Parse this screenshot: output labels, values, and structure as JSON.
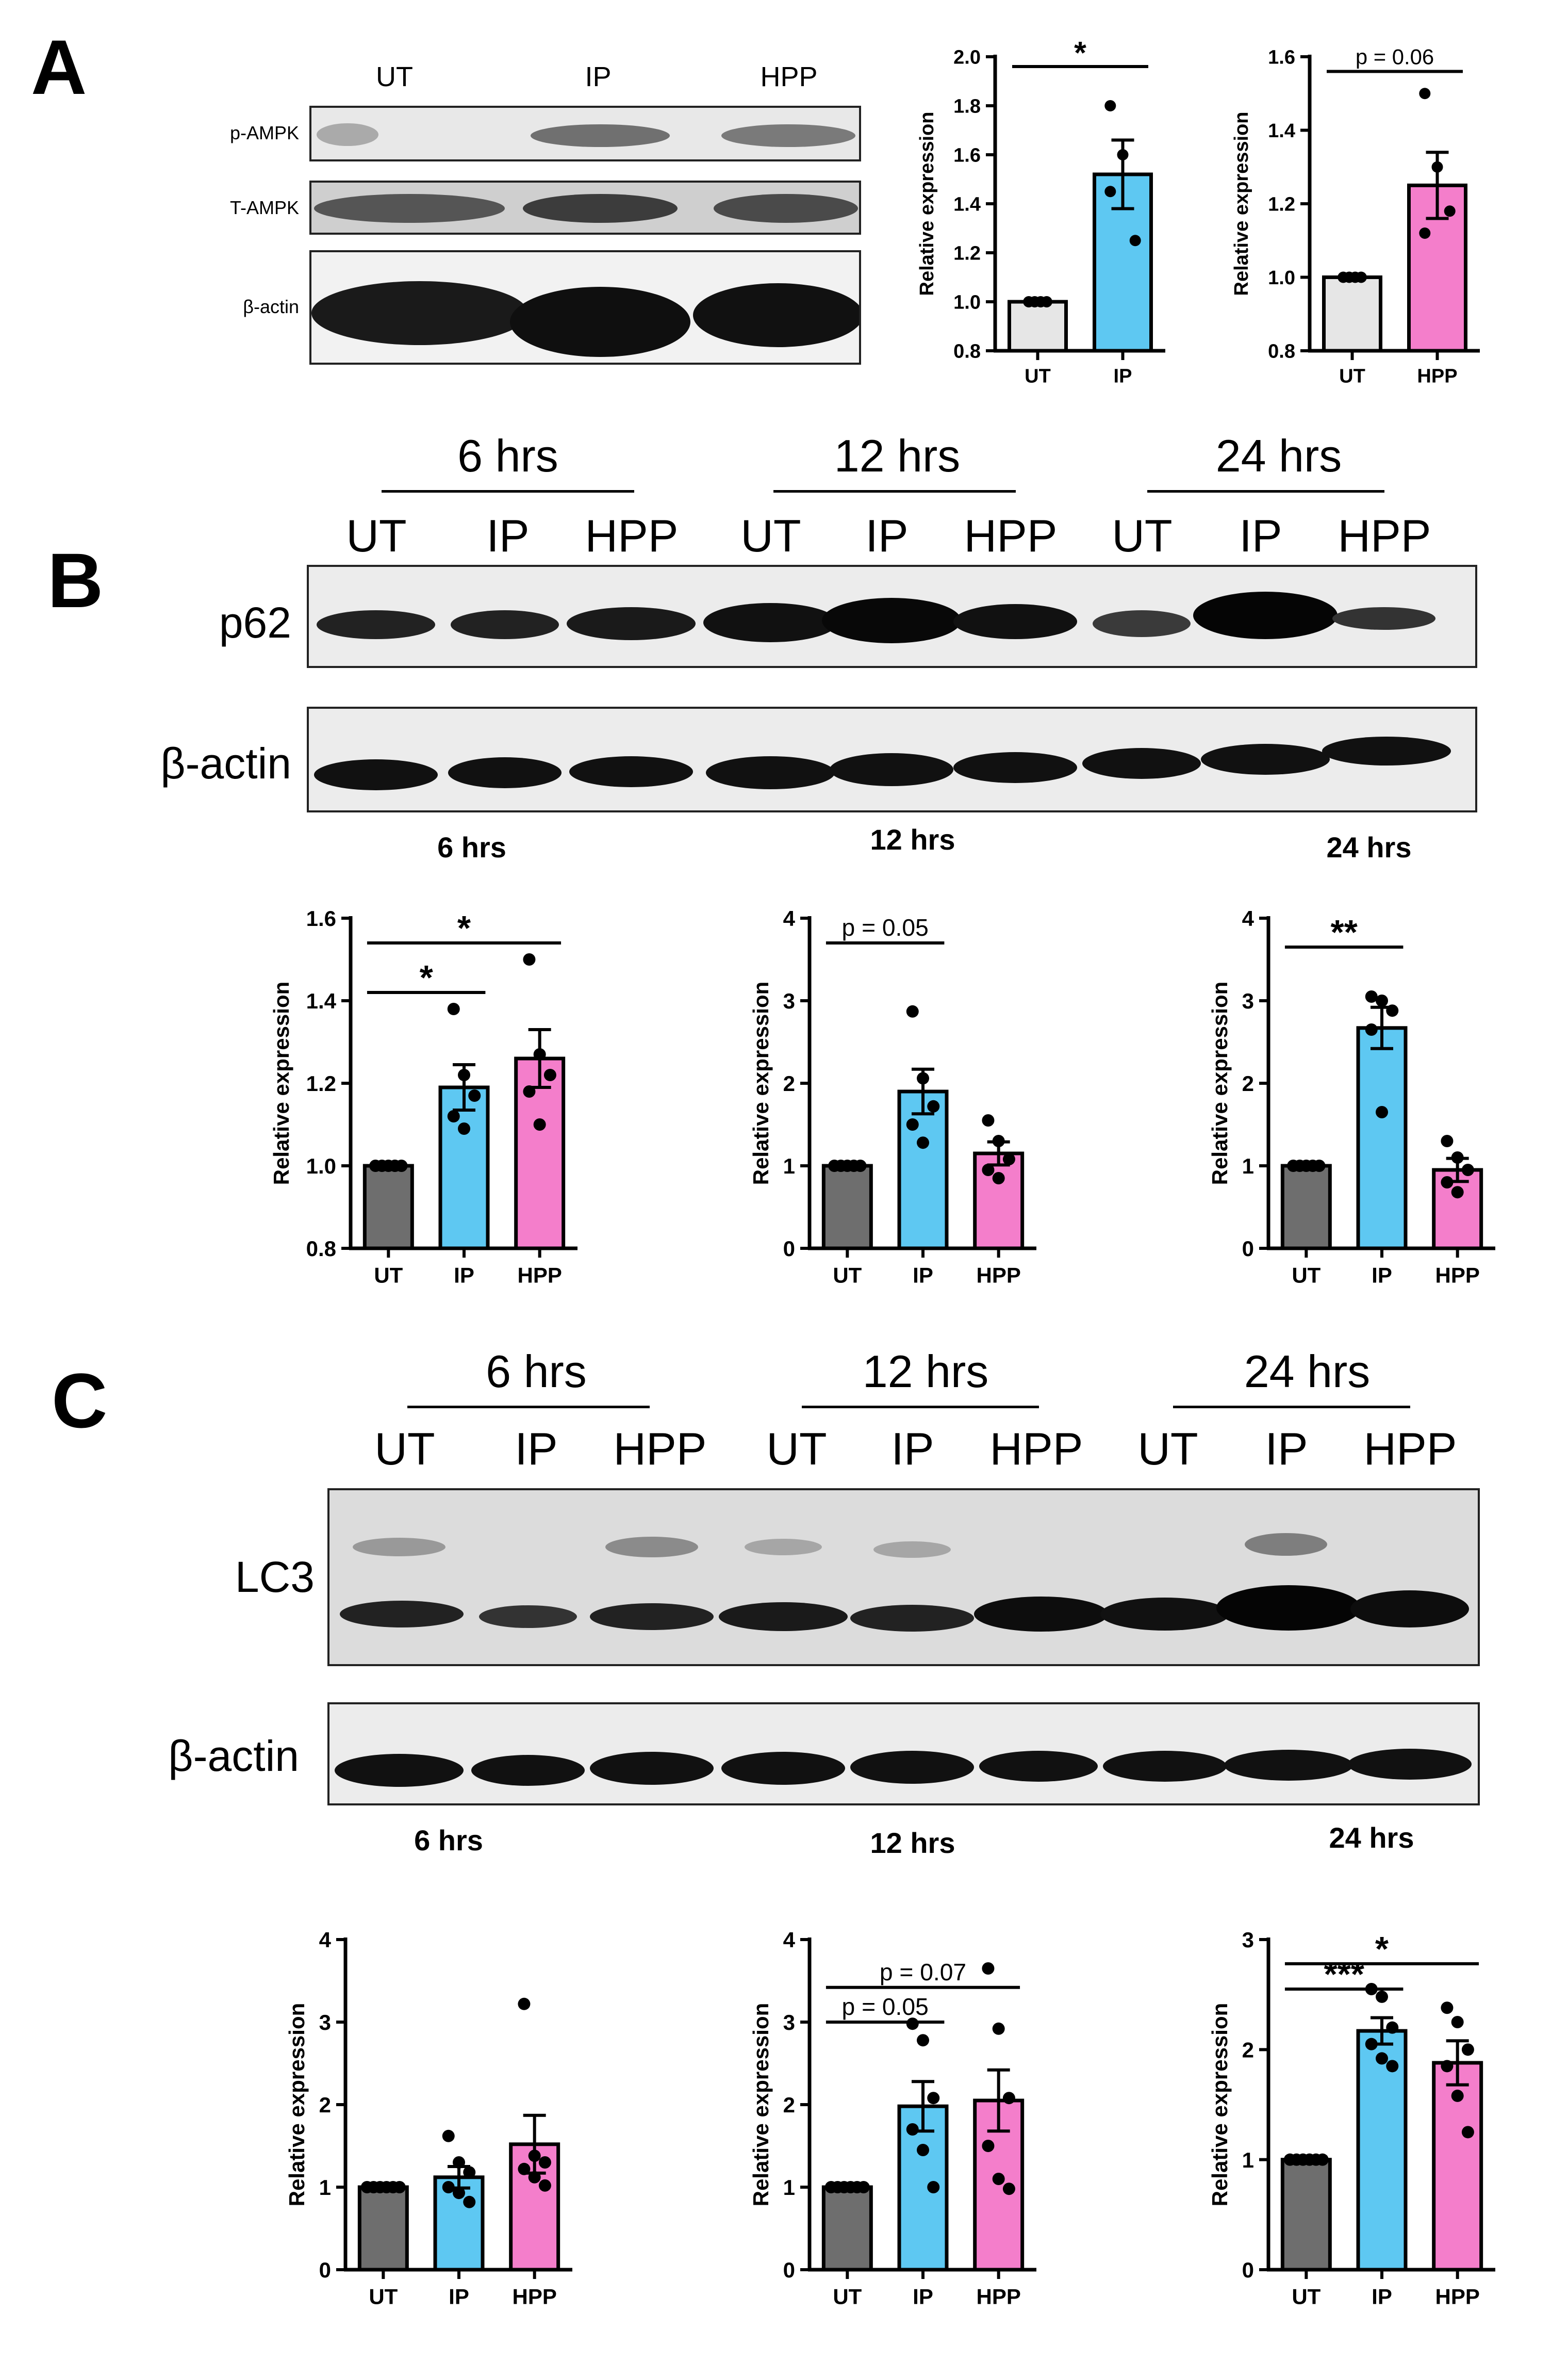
{
  "panels": {
    "a": "A",
    "b": "B",
    "c": "C"
  },
  "panel_a": {
    "lanes": [
      "UT",
      "IP",
      "HPP"
    ],
    "rows": [
      "p-AMPK",
      "T-AMPK",
      "β-actin"
    ]
  },
  "panel_b": {
    "times": [
      "6 hrs",
      "12 hrs",
      "24 hrs"
    ],
    "lanes": [
      "UT",
      "IP",
      "HPP",
      "UT",
      "IP",
      "HPP",
      "UT",
      "IP",
      "HPP"
    ],
    "rows": [
      "p62",
      "β-actin"
    ],
    "subtitles": [
      "6 hrs",
      "12 hrs",
      "24 hrs"
    ]
  },
  "panel_c": {
    "times": [
      "6 hrs",
      "12 hrs",
      "24 hrs"
    ],
    "lanes": [
      "UT",
      "IP",
      "HPP",
      "UT",
      "IP",
      "HPP",
      "UT",
      "IP",
      "HPP"
    ],
    "rows": [
      "LC3",
      "β-actin"
    ],
    "subtitles": [
      "6 hrs",
      "12 hrs",
      "24 hrs"
    ]
  },
  "colors": {
    "ut_light": "#e6e6e6",
    "ut_dark": "#6e6e6e",
    "ip": "#5ec8f2",
    "hpp": "#f47ecb"
  },
  "chart_data": [
    {
      "id": "A-IP",
      "type": "bar",
      "ylabel": "Relative expression",
      "ylim": [
        0.8,
        2.0
      ],
      "yticks": [
        0.8,
        1.0,
        1.2,
        1.4,
        1.6,
        1.8,
        2.0
      ],
      "tick_decimals": 1,
      "categories": [
        "UT",
        "IP"
      ],
      "values": [
        1.0,
        1.52
      ],
      "sem": [
        0,
        0.14
      ],
      "points": [
        [
          1,
          1,
          1,
          1
        ],
        [
          1.8,
          1.6,
          1.25,
          1.45
        ]
      ],
      "colors": [
        "#e6e6e6",
        "#5ec8f2"
      ],
      "annotations": [
        {
          "text": "*",
          "from": 0,
          "to": 1,
          "y": 1.96
        }
      ]
    },
    {
      "id": "A-HPP",
      "type": "bar",
      "ylabel": "Relative expression",
      "ylim": [
        0.8,
        1.6
      ],
      "yticks": [
        0.8,
        1.0,
        1.2,
        1.4,
        1.6
      ],
      "tick_decimals": 1,
      "categories": [
        "UT",
        "HPP"
      ],
      "values": [
        1.0,
        1.25
      ],
      "sem": [
        0,
        0.09
      ],
      "points": [
        [
          1,
          1,
          1,
          1
        ],
        [
          1.5,
          1.3,
          1.18,
          1.12
        ]
      ],
      "colors": [
        "#e6e6e6",
        "#f47ecb"
      ],
      "annotations": [
        {
          "text": "p = 0.06",
          "from": 0,
          "to": 1,
          "y": 1.56
        }
      ]
    },
    {
      "id": "B-6",
      "type": "bar",
      "title": "6 hrs",
      "ylabel": "Relative expression",
      "ylim": [
        0.8,
        1.6
      ],
      "yticks": [
        0.8,
        1.0,
        1.2,
        1.4,
        1.6
      ],
      "tick_decimals": 1,
      "categories": [
        "UT",
        "IP",
        "HPP"
      ],
      "values": [
        1.0,
        1.19,
        1.26
      ],
      "sem": [
        0,
        0.055,
        0.07
      ],
      "points": [
        [
          1,
          1,
          1,
          1,
          1
        ],
        [
          1.38,
          1.22,
          1.17,
          1.12,
          1.09
        ],
        [
          1.5,
          1.27,
          1.22,
          1.18,
          1.1
        ]
      ],
      "colors": [
        "#6e6e6e",
        "#5ec8f2",
        "#f47ecb"
      ],
      "annotations": [
        {
          "text": "*",
          "from": 0,
          "to": 1,
          "y": 1.42
        },
        {
          "text": "*",
          "from": 0,
          "to": 2,
          "y": 1.54
        }
      ]
    },
    {
      "id": "B-12",
      "type": "bar",
      "title": "12 hrs",
      "ylabel": "Relative expression",
      "ylim": [
        0,
        4
      ],
      "yticks": [
        0,
        1,
        2,
        3,
        4
      ],
      "tick_decimals": 0,
      "categories": [
        "UT",
        "IP",
        "HPP"
      ],
      "values": [
        1.0,
        1.9,
        1.15
      ],
      "sem": [
        0,
        0.27,
        0.14
      ],
      "points": [
        [
          1,
          1,
          1,
          1,
          1
        ],
        [
          2.87,
          2.06,
          1.72,
          1.5,
          1.28
        ],
        [
          1.55,
          1.3,
          1.08,
          0.95,
          0.85
        ]
      ],
      "colors": [
        "#6e6e6e",
        "#5ec8f2",
        "#f47ecb"
      ],
      "annotations": [
        {
          "text": "p = 0.05",
          "from": 0,
          "to": 1,
          "y": 3.7
        }
      ]
    },
    {
      "id": "B-24",
      "type": "bar",
      "title": "24 hrs",
      "ylabel": "Relative expression",
      "ylim": [
        0,
        4
      ],
      "yticks": [
        0,
        1,
        2,
        3,
        4
      ],
      "tick_decimals": 0,
      "categories": [
        "UT",
        "IP",
        "HPP"
      ],
      "values": [
        1.0,
        2.67,
        0.95
      ],
      "sem": [
        0,
        0.25,
        0.14
      ],
      "points": [
        [
          1,
          1,
          1,
          1,
          1
        ],
        [
          3.05,
          3.0,
          2.88,
          2.65,
          1.65
        ],
        [
          1.3,
          1.1,
          0.95,
          0.8,
          0.68
        ]
      ],
      "colors": [
        "#6e6e6e",
        "#5ec8f2",
        "#f47ecb"
      ],
      "annotations": [
        {
          "text": "**",
          "from": 0,
          "to": 1,
          "y": 3.65
        }
      ]
    },
    {
      "id": "C-6",
      "type": "bar",
      "ylabel": "Relative expression",
      "ylim": [
        0,
        4
      ],
      "yticks": [
        0,
        1,
        2,
        3,
        4
      ],
      "tick_decimals": 0,
      "categories": [
        "UT",
        "IP",
        "HPP"
      ],
      "values": [
        1.0,
        1.12,
        1.52
      ],
      "sem": [
        0,
        0.13,
        0.35
      ],
      "points": [
        [
          1,
          1,
          1,
          1,
          1,
          1
        ],
        [
          1.62,
          1.3,
          1.18,
          1.0,
          0.93,
          0.82
        ],
        [
          3.22,
          1.38,
          1.3,
          1.22,
          1.12,
          1.02
        ]
      ],
      "colors": [
        "#6e6e6e",
        "#5ec8f2",
        "#f47ecb"
      ],
      "annotations": []
    },
    {
      "id": "C-12",
      "type": "bar",
      "ylabel": "Relative expression",
      "ylim": [
        0,
        4
      ],
      "yticks": [
        0,
        1,
        2,
        3,
        4
      ],
      "tick_decimals": 0,
      "categories": [
        "UT",
        "IP",
        "HPP"
      ],
      "values": [
        1.0,
        1.98,
        2.05
      ],
      "sem": [
        0,
        0.3,
        0.37
      ],
      "points": [
        [
          1,
          1,
          1,
          1,
          1,
          1
        ],
        [
          2.98,
          2.78,
          2.08,
          1.7,
          1.45,
          1.0
        ],
        [
          3.65,
          2.92,
          2.08,
          1.5,
          1.1,
          0.98
        ]
      ],
      "colors": [
        "#6e6e6e",
        "#5ec8f2",
        "#f47ecb"
      ],
      "annotations": [
        {
          "text": "p = 0.05",
          "from": 0,
          "to": 1,
          "y": 3.0
        },
        {
          "text": "p = 0.07",
          "from": 0,
          "to": 2,
          "y": 3.42
        }
      ]
    },
    {
      "id": "C-24",
      "type": "bar",
      "ylabel": "Relative expression",
      "ylim": [
        0,
        3
      ],
      "yticks": [
        0,
        1,
        2,
        3
      ],
      "tick_decimals": 0,
      "categories": [
        "UT",
        "IP",
        "HPP"
      ],
      "values": [
        1.0,
        2.17,
        1.88
      ],
      "sem": [
        0,
        0.12,
        0.2
      ],
      "points": [
        [
          1,
          1,
          1,
          1,
          1,
          1
        ],
        [
          2.55,
          2.48,
          2.2,
          2.05,
          1.92,
          1.85
        ],
        [
          2.38,
          2.25,
          2.0,
          1.85,
          1.58,
          1.25
        ]
      ],
      "colors": [
        "#6e6e6e",
        "#5ec8f2",
        "#f47ecb"
      ],
      "annotations": [
        {
          "text": "***",
          "from": 0,
          "to": 1,
          "y": 2.55
        },
        {
          "text": "*",
          "from": 0,
          "to": 2,
          "y": 2.78
        }
      ]
    }
  ]
}
